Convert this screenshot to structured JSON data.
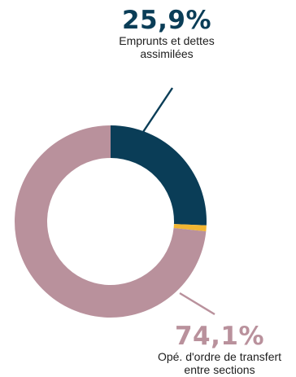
{
  "chart_data": {
    "type": "pie",
    "donut": true,
    "slices": [
      {
        "label": "Emprunts et dettes assimilées",
        "value": 25.9,
        "value_label": "25,9%",
        "color": "#0a3d57"
      },
      {
        "label": "",
        "value": 1.0,
        "value_label": "",
        "color": "#f2b632"
      },
      {
        "label": "Opé. d'ordre de transfert entre sections",
        "value": 74.1,
        "value_label": "74,1%",
        "color": "#b9919c"
      }
    ]
  },
  "labels": {
    "top": {
      "value": "25,9%",
      "desc_line1": "Emprunts et dettes",
      "desc_line2": "assimilées"
    },
    "bottom": {
      "value": "74,1%",
      "desc_line1": "Opé. d'ordre de transfert",
      "desc_line2": "entre sections"
    }
  }
}
